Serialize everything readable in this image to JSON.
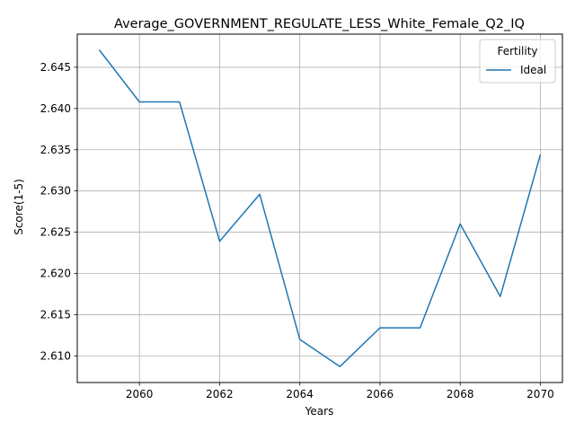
{
  "chart_data": {
    "type": "line",
    "title": "Average_GOVERNMENT_REGULATE_LESS_White_Female_Q2_IQ",
    "xlabel": "Years",
    "ylabel": "Score(1-5)",
    "x": [
      2059,
      2060,
      2061,
      2062,
      2063,
      2064,
      2065,
      2066,
      2067,
      2068,
      2069,
      2070
    ],
    "series": [
      {
        "name": "Ideal",
        "color": "#1f77b4",
        "values": [
          2.6471,
          2.6408,
          2.6408,
          2.6239,
          2.6296,
          2.612,
          2.6087,
          2.6134,
          2.6134,
          2.626,
          2.6172,
          2.6344
        ]
      }
    ],
    "xlim": [
      2058.45,
      2070.55
    ],
    "ylim": [
      2.60677,
      2.64902
    ],
    "xticks": [
      2060,
      2062,
      2064,
      2066,
      2068,
      2070
    ],
    "yticks": [
      2.61,
      2.615,
      2.62,
      2.625,
      2.63,
      2.635,
      2.64,
      2.645
    ],
    "xtick_labels": [
      "2060",
      "2062",
      "2064",
      "2066",
      "2068",
      "2070"
    ],
    "ytick_labels": [
      "2.610",
      "2.615",
      "2.620",
      "2.625",
      "2.630",
      "2.635",
      "2.640",
      "2.645"
    ],
    "grid": true,
    "legend": {
      "title": "Fertility",
      "position": "top-right"
    }
  }
}
